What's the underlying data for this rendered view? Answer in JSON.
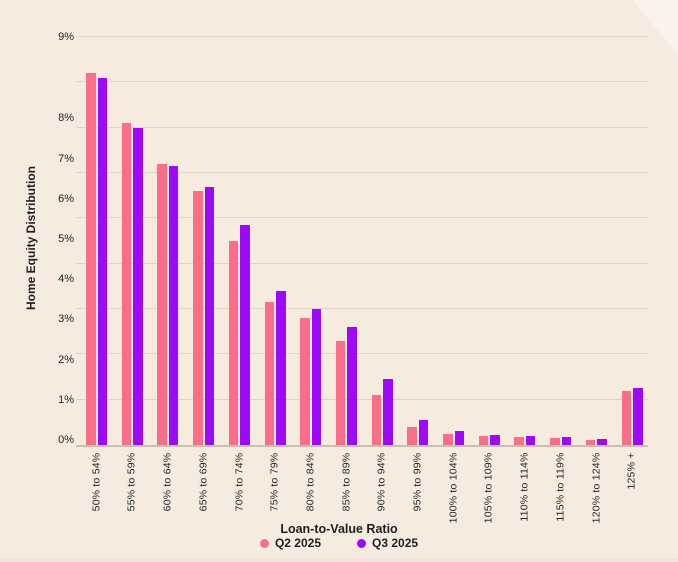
{
  "chart_data": {
    "type": "bar",
    "title": "",
    "xlabel": "Loan-to-Value Ratio",
    "ylabel": "Home Equity Distribution",
    "categories": [
      "50% to 54%",
      "55% to 59%",
      "60% to 64%",
      "65% to 69%",
      "70% to 74%",
      "75% to 79%",
      "80% to 84%",
      "85% to 89%",
      "90% to 94%",
      "95% to 99%",
      "100% to 104%",
      "105% to 109%",
      "110% to 114%",
      "115% to 119%",
      "120% to 124%",
      "125% +"
    ],
    "series": [
      {
        "name": "Q2 2025",
        "color": "#fc6d87",
        "values": [
          8.2,
          7.1,
          6.2,
          5.6,
          4.5,
          3.15,
          2.8,
          2.3,
          1.1,
          0.4,
          0.25,
          0.2,
          0.17,
          0.15,
          0.11,
          1.2
        ]
      },
      {
        "name": "Q3 2025",
        "color": "#9e0af7",
        "values": [
          8.1,
          7.0,
          6.15,
          5.7,
          4.85,
          3.4,
          3.0,
          2.6,
          1.45,
          0.55,
          0.3,
          0.22,
          0.19,
          0.17,
          0.13,
          1.25
        ]
      }
    ],
    "y_ticks": [
      "0%",
      "1%",
      "2%",
      "3%",
      "4%",
      "5%",
      "6%",
      "7%",
      "8%",
      "9%"
    ],
    "ylim": [
      0,
      9
    ],
    "grid": true,
    "legend_position": "bottom"
  },
  "colors": {
    "panel_bg": "#f5ecdf",
    "corner_bg": "#f9f3eb",
    "gridline": "#ddd3c4",
    "axis_line": "#c8bfb1",
    "text": "#1f1f1f"
  }
}
